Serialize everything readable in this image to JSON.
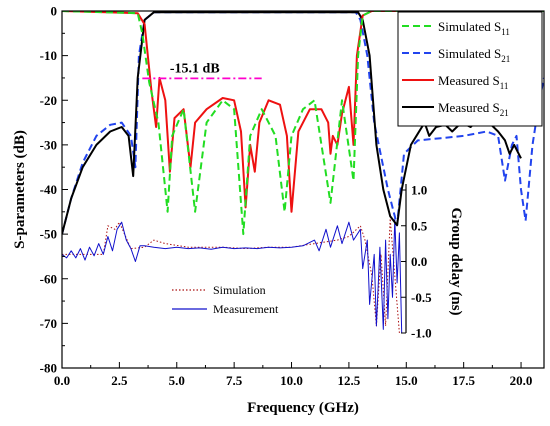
{
  "chart_data": {
    "type": "line",
    "xlabel": "Frequency (GHz)",
    "ylabel": "S-parameters (dB)",
    "y2label": "Group delay (ns)",
    "xlim": [
      0,
      21
    ],
    "ylim": [
      -80,
      0
    ],
    "xticks": [
      "0.0",
      "2.5",
      "5.0",
      "7.5",
      "10.0",
      "12.5",
      "15.0",
      "17.5",
      "20.0"
    ],
    "yticks": [
      "0",
      "-10",
      "-20",
      "-30",
      "-40",
      "-50",
      "-60",
      "-70",
      "-80"
    ],
    "y2lim": [
      -1.0,
      1.0
    ],
    "y2ticks": [
      "1.0",
      "0.5",
      "0.0",
      "-0.5",
      "-1.0"
    ],
    "annotation": {
      "text": "-15.1 dB",
      "y": -15.1,
      "x_range": [
        3.5,
        8.7
      ]
    },
    "legend_position": "top-right",
    "inset_legend_position": "center",
    "series": [
      {
        "name": "Simulated S11",
        "legend_main": "Simulated S",
        "legend_sub": "11",
        "color": "#22dd22",
        "dash": "dashed",
        "points": [
          [
            0,
            0
          ],
          [
            3.3,
            -0.5
          ],
          [
            3.5,
            -5
          ],
          [
            3.8,
            -16
          ],
          [
            4.2,
            -25
          ],
          [
            4.6,
            -45
          ],
          [
            4.8,
            -28
          ],
          [
            5.3,
            -22
          ],
          [
            5.8,
            -45
          ],
          [
            6.3,
            -25
          ],
          [
            7.0,
            -20
          ],
          [
            7.5,
            -22
          ],
          [
            7.9,
            -50
          ],
          [
            8.2,
            -28
          ],
          [
            8.7,
            -22
          ],
          [
            9.3,
            -28
          ],
          [
            9.7,
            -45
          ],
          [
            10.0,
            -28
          ],
          [
            10.5,
            -22
          ],
          [
            11.0,
            -20
          ],
          [
            11.7,
            -43
          ],
          [
            12.2,
            -20
          ],
          [
            12.7,
            -38
          ],
          [
            12.9,
            -10
          ],
          [
            13.1,
            -1
          ],
          [
            13.5,
            0
          ],
          [
            21,
            0
          ]
        ]
      },
      {
        "name": "Simulated S21",
        "legend_main": "Simulated S",
        "legend_sub": "21",
        "color": "#2244ee",
        "dash": "dashed",
        "points": [
          [
            0,
            -50
          ],
          [
            0.4,
            -42
          ],
          [
            0.9,
            -34
          ],
          [
            1.5,
            -28
          ],
          [
            2.1,
            -25.5
          ],
          [
            2.6,
            -25
          ],
          [
            3.0,
            -28
          ],
          [
            3.2,
            -35
          ],
          [
            3.35,
            -10
          ],
          [
            3.6,
            -2
          ],
          [
            4.0,
            -0.3
          ],
          [
            12.8,
            -0.3
          ],
          [
            13.0,
            -2
          ],
          [
            13.3,
            -10
          ],
          [
            13.6,
            -25
          ],
          [
            14.2,
            -40
          ],
          [
            14.6,
            -48
          ],
          [
            14.9,
            -32
          ],
          [
            15.5,
            -29
          ],
          [
            16.5,
            -28.5
          ],
          [
            17.5,
            -28
          ],
          [
            18.5,
            -27
          ],
          [
            19.0,
            -28
          ],
          [
            19.3,
            -38
          ],
          [
            19.6,
            -30
          ],
          [
            19.8,
            -28
          ],
          [
            20.0,
            -40
          ],
          [
            20.2,
            -47
          ],
          [
            20.5,
            -30
          ],
          [
            20.8,
            -20
          ],
          [
            21.0,
            -15
          ]
        ]
      },
      {
        "name": "Measured S11",
        "legend_main": "Measured S",
        "legend_sub": "11",
        "color": "#ee1111",
        "dash": "solid",
        "points": [
          [
            0,
            0
          ],
          [
            3.3,
            -0.5
          ],
          [
            3.6,
            -3
          ],
          [
            3.9,
            -18
          ],
          [
            4.1,
            -26
          ],
          [
            4.25,
            -15
          ],
          [
            4.5,
            -20
          ],
          [
            4.7,
            -36
          ],
          [
            4.9,
            -24
          ],
          [
            5.3,
            -22
          ],
          [
            5.6,
            -35
          ],
          [
            5.8,
            -25
          ],
          [
            6.3,
            -22
          ],
          [
            7.0,
            -19.5
          ],
          [
            7.5,
            -20
          ],
          [
            7.8,
            -27
          ],
          [
            8.0,
            -44
          ],
          [
            8.2,
            -30
          ],
          [
            8.4,
            -36
          ],
          [
            8.6,
            -25
          ],
          [
            9.0,
            -20
          ],
          [
            9.5,
            -21
          ],
          [
            9.8,
            -28
          ],
          [
            10.0,
            -45
          ],
          [
            10.3,
            -27
          ],
          [
            10.8,
            -22
          ],
          [
            11.3,
            -22
          ],
          [
            11.6,
            -25
          ],
          [
            11.7,
            -32
          ],
          [
            11.8,
            -28
          ],
          [
            12.0,
            -30
          ],
          [
            12.2,
            -23
          ],
          [
            12.5,
            -17
          ],
          [
            12.7,
            -30
          ],
          [
            12.85,
            -10
          ],
          [
            13.1,
            -1
          ],
          [
            13.5,
            0
          ],
          [
            21,
            0
          ]
        ]
      },
      {
        "name": "Measured S21",
        "legend_main": "Measured S",
        "legend_sub": "21",
        "color": "#000000",
        "dash": "solid",
        "points": [
          [
            0,
            -50
          ],
          [
            0.4,
            -42
          ],
          [
            0.9,
            -35
          ],
          [
            1.5,
            -30
          ],
          [
            2.1,
            -27
          ],
          [
            2.6,
            -26
          ],
          [
            2.9,
            -28
          ],
          [
            3.1,
            -37
          ],
          [
            3.3,
            -15
          ],
          [
            3.6,
            -2
          ],
          [
            4.0,
            -0.3
          ],
          [
            12.9,
            -0.3
          ],
          [
            13.1,
            -2
          ],
          [
            13.4,
            -10
          ],
          [
            13.7,
            -30
          ],
          [
            14.0,
            -40
          ],
          [
            14.3,
            -46
          ],
          [
            14.6,
            -48
          ],
          [
            14.8,
            -40
          ],
          [
            15.0,
            -35
          ],
          [
            15.2,
            -30
          ],
          [
            15.5,
            -27.5
          ],
          [
            15.8,
            -25
          ],
          [
            16.0,
            -28
          ],
          [
            16.3,
            -26
          ],
          [
            16.7,
            -25.5
          ],
          [
            17.0,
            -27
          ],
          [
            17.4,
            -25
          ],
          [
            17.8,
            -26
          ],
          [
            18.2,
            -24
          ],
          [
            18.6,
            -25
          ],
          [
            19.0,
            -27
          ],
          [
            19.3,
            -29
          ],
          [
            19.5,
            -32
          ],
          [
            19.7,
            -30
          ],
          [
            20.0,
            -33
          ]
        ]
      },
      {
        "name": "Simulation",
        "axis": "y2",
        "color": "#aa1111",
        "dash": "dotted",
        "points": [
          [
            0,
            0.1
          ],
          [
            1.8,
            0.1
          ],
          [
            2.0,
            0.5
          ],
          [
            2.3,
            0.45
          ],
          [
            2.5,
            0.55
          ],
          [
            2.7,
            0.4
          ],
          [
            3.0,
            0.18
          ],
          [
            3.6,
            0.2
          ],
          [
            4.0,
            0.3
          ],
          [
            4.5,
            0.25
          ],
          [
            5.5,
            0.2
          ],
          [
            7,
            0.2
          ],
          [
            8,
            0.18
          ],
          [
            9,
            0.2
          ],
          [
            10,
            0.2
          ],
          [
            11,
            0.25
          ],
          [
            12,
            0.3
          ],
          [
            12.5,
            0.35
          ],
          [
            13,
            0.5
          ],
          [
            13.2,
            0.3
          ],
          [
            13.5,
            -0.2
          ],
          [
            13.7,
            -0.9
          ],
          [
            13.9,
            0.1
          ],
          [
            14.1,
            -0.9
          ],
          [
            14.3,
            0.6
          ],
          [
            14.5,
            -0.2
          ],
          [
            14.7,
            -1.0
          ]
        ]
      },
      {
        "name": "Measurement",
        "axis": "y2",
        "color": "#1111cc",
        "dash": "solid",
        "points": [
          [
            0,
            0.1
          ],
          [
            0.2,
            0.05
          ],
          [
            0.4,
            0.15
          ],
          [
            0.6,
            0.05
          ],
          [
            0.8,
            0.18
          ],
          [
            1.0,
            0.02
          ],
          [
            1.2,
            0.2
          ],
          [
            1.4,
            0.08
          ],
          [
            1.6,
            0.25
          ],
          [
            1.8,
            0.1
          ],
          [
            2.0,
            0.35
          ],
          [
            2.2,
            0.15
          ],
          [
            2.4,
            0.45
          ],
          [
            2.6,
            0.55
          ],
          [
            2.8,
            0.3
          ],
          [
            3.0,
            0.18
          ],
          [
            3.2,
            0.0
          ],
          [
            3.4,
            0.22
          ],
          [
            3.6,
            0.22
          ],
          [
            4.0,
            0.2
          ],
          [
            4.5,
            0.18
          ],
          [
            5.0,
            0.2
          ],
          [
            5.5,
            0.18
          ],
          [
            6.0,
            0.19
          ],
          [
            6.5,
            0.17
          ],
          [
            7.0,
            0.2
          ],
          [
            7.5,
            0.18
          ],
          [
            8.0,
            0.19
          ],
          [
            8.5,
            0.18
          ],
          [
            9.0,
            0.2
          ],
          [
            9.5,
            0.19
          ],
          [
            10.0,
            0.2
          ],
          [
            10.5,
            0.22
          ],
          [
            11.0,
            0.3
          ],
          [
            11.2,
            0.15
          ],
          [
            11.5,
            0.45
          ],
          [
            11.7,
            0.2
          ],
          [
            12.0,
            0.5
          ],
          [
            12.2,
            0.25
          ],
          [
            12.5,
            0.55
          ],
          [
            12.7,
            0.3
          ],
          [
            13.0,
            0.45
          ],
          [
            13.1,
            -0.1
          ],
          [
            13.3,
            0.3
          ],
          [
            13.4,
            -0.6
          ],
          [
            13.6,
            0.1
          ],
          [
            13.7,
            -0.9
          ],
          [
            13.85,
            0.2
          ],
          [
            14.0,
            -0.95
          ],
          [
            14.1,
            0.3
          ],
          [
            14.2,
            -0.8
          ],
          [
            14.3,
            0.1
          ],
          [
            14.4,
            -0.5
          ],
          [
            14.5,
            0.6
          ],
          [
            14.6,
            -0.3
          ],
          [
            14.7,
            0.4
          ],
          [
            14.8,
            -1.0
          ]
        ]
      }
    ]
  }
}
